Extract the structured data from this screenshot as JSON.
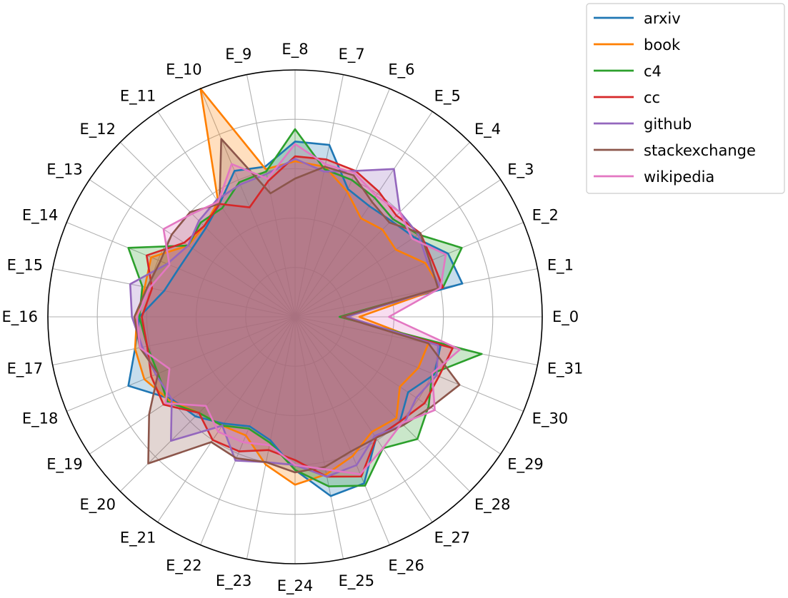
{
  "chart_data": {
    "type": "radar",
    "title": "",
    "grid": true,
    "legend_position": "top-right, outside plot",
    "categories": [
      "E_0",
      "E_1",
      "E_2",
      "E_3",
      "E_4",
      "E_5",
      "E_6",
      "E_7",
      "E_8",
      "E_9",
      "E_10",
      "E_11",
      "E_12",
      "E_13",
      "E_14",
      "E_15",
      "E_16",
      "E_17",
      "E_18",
      "E_19",
      "E_20",
      "E_21",
      "E_22",
      "E_23",
      "E_24",
      "E_25",
      "E_26",
      "E_27",
      "E_28",
      "E_29",
      "E_30",
      "E_31"
    ],
    "series": [
      {
        "name": "arxiv",
        "color": "#1f77b4",
        "values": [
          0.19,
          0.69,
          0.67,
          0.58,
          0.55,
          0.54,
          0.56,
          0.71,
          0.71,
          0.62,
          0.64,
          0.55,
          0.51,
          0.5,
          0.51,
          0.54,
          0.63,
          0.66,
          0.73,
          0.6,
          0.57,
          0.52,
          0.48,
          0.51,
          0.62,
          0.74,
          0.73,
          0.59,
          0.6,
          0.55,
          0.61,
          0.6
        ]
      },
      {
        "name": "book",
        "color": "#ff7f00",
        "values": [
          0.26,
          0.6,
          0.57,
          0.49,
          0.5,
          0.48,
          0.55,
          0.62,
          0.63,
          0.61,
          1.0,
          0.56,
          0.52,
          0.52,
          0.63,
          0.62,
          0.64,
          0.66,
          0.66,
          0.61,
          0.55,
          0.53,
          0.52,
          0.61,
          0.68,
          0.65,
          0.61,
          0.56,
          0.58,
          0.51,
          0.54,
          0.55
        ]
      },
      {
        "name": "c4",
        "color": "#2ca02c",
        "values": [
          0.18,
          0.61,
          0.73,
          0.6,
          0.56,
          0.58,
          0.6,
          0.61,
          0.76,
          0.6,
          0.59,
          0.53,
          0.54,
          0.52,
          0.73,
          0.63,
          0.63,
          0.61,
          0.6,
          0.62,
          0.55,
          0.53,
          0.49,
          0.52,
          0.62,
          0.7,
          0.74,
          0.64,
          0.7,
          0.65,
          0.6,
          0.77
        ]
      },
      {
        "name": "cc",
        "color": "#d62728",
        "values": [
          0.19,
          0.61,
          0.6,
          0.61,
          0.58,
          0.61,
          0.64,
          0.65,
          0.65,
          0.56,
          0.48,
          0.55,
          0.52,
          0.54,
          0.65,
          0.59,
          0.62,
          0.61,
          0.63,
          0.64,
          0.55,
          0.6,
          0.59,
          0.55,
          0.58,
          0.66,
          0.7,
          0.59,
          0.6,
          0.63,
          0.63,
          0.65
        ]
      },
      {
        "name": "github",
        "color": "#9467bd",
        "values": [
          0.21,
          0.6,
          0.58,
          0.6,
          0.6,
          0.72,
          0.64,
          0.6,
          0.64,
          0.59,
          0.58,
          0.57,
          0.55,
          0.52,
          0.56,
          0.68,
          0.66,
          0.63,
          0.61,
          0.6,
          0.71,
          0.53,
          0.63,
          0.6,
          0.6,
          0.66,
          0.65,
          0.58,
          0.62,
          0.59,
          0.62,
          0.59
        ]
      },
      {
        "name": "stackexchange",
        "color": "#8c564b",
        "values": [
          0.19,
          0.59,
          0.59,
          0.61,
          0.54,
          0.56,
          0.62,
          0.62,
          0.56,
          0.51,
          0.78,
          0.55,
          0.6,
          0.6,
          0.59,
          0.61,
          0.65,
          0.64,
          0.6,
          0.71,
          0.84,
          0.61,
          0.62,
          0.6,
          0.63,
          0.62,
          0.59,
          0.59,
          0.62,
          0.66,
          0.72,
          0.55
        ]
      },
      {
        "name": "wikipedia",
        "color": "#e377c2",
        "values": [
          0.38,
          0.6,
          0.66,
          0.57,
          0.6,
          0.59,
          0.63,
          0.63,
          0.7,
          0.57,
          0.67,
          0.56,
          0.59,
          0.64,
          0.55,
          0.6,
          0.64,
          0.64,
          0.55,
          0.63,
          0.51,
          0.56,
          0.55,
          0.53,
          0.6,
          0.63,
          0.69,
          0.64,
          0.61,
          0.68,
          0.6,
          0.68
        ]
      }
    ],
    "rlim": [
      0,
      1
    ],
    "radial_grid_count": 5
  }
}
